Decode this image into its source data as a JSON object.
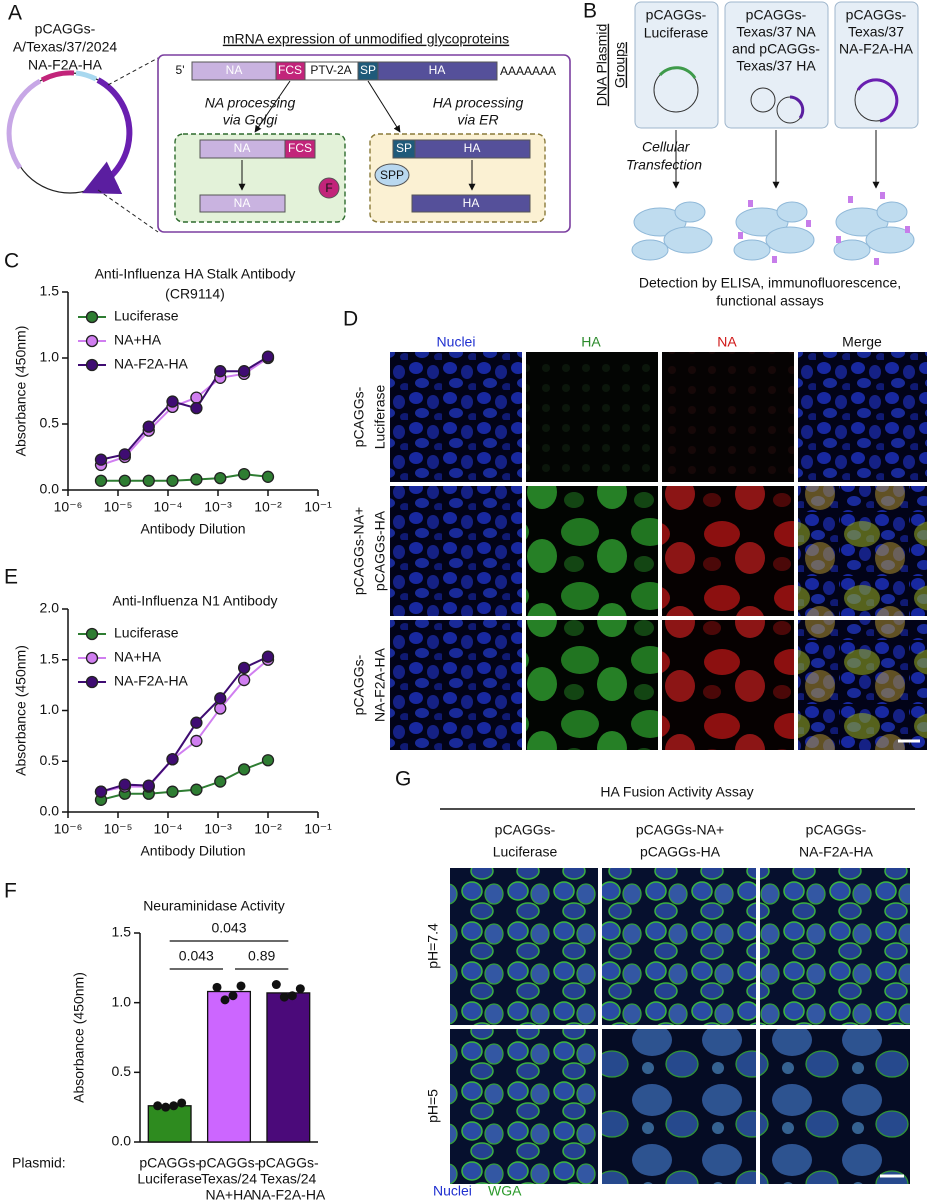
{
  "panel_labels": [
    "A",
    "B",
    "C",
    "D",
    "E",
    "F",
    "G"
  ],
  "panel_a": {
    "plasmid_label": [
      "pCAGGs-",
      "A/Texas/37/2024",
      "NA-F2A-HA"
    ],
    "title": "mRNA expression of unmodified glycoproteins",
    "five_prime": "5'",
    "segments": [
      "NA",
      "FCS",
      "PTV-2A",
      "SP",
      "HA"
    ],
    "poly_a": "AAAAAAA",
    "na_processing": [
      "NA processing",
      "via Golgi"
    ],
    "ha_processing": [
      "HA processing",
      "via ER"
    ],
    "golgi_box": {
      "top": [
        "NA",
        "FCS"
      ],
      "furin": "F",
      "bottom": "NA"
    },
    "er_box": {
      "sp": "SP",
      "ha_top": "HA",
      "spp": "SPP",
      "bottom": "HA"
    }
  },
  "panel_b": {
    "groups_label": [
      "DNA Plasmid",
      "Groups"
    ],
    "groups": [
      [
        "pCAGGs-",
        "Luciferase"
      ],
      [
        "pCAGGs-",
        "Texas/37 NA",
        "and pCAGGs-",
        "Texas/37 HA"
      ],
      [
        "pCAGGs-",
        "Texas/37",
        "NA-F2A-HA"
      ]
    ],
    "transfection": [
      "Cellular",
      "Transfection"
    ],
    "detection": [
      "Detection by ELISA, immunofluorescence,",
      "functional assays"
    ]
  },
  "panel_d": {
    "columns": [
      "Nuclei",
      "HA",
      "NA",
      "Merge"
    ],
    "rows": [
      [
        "pCAGGs-",
        "Luciferase"
      ],
      [
        "pCAGGs-NA+",
        "pCAGGs-HA"
      ],
      [
        "pCAGGs-",
        "NA-F2A-HA"
      ]
    ]
  },
  "panel_g": {
    "title": "HA Fusion Activity Assay",
    "columns": [
      [
        "pCAGGs-",
        "Luciferase"
      ],
      [
        "pCAGGs-NA+",
        "pCAGGs-HA"
      ],
      [
        "pCAGGs-",
        "NA-F2A-HA"
      ]
    ],
    "rows": [
      "pH=7.4",
      "pH=5"
    ],
    "legend": [
      "Nuclei",
      "WGA"
    ]
  },
  "chart_data": [
    {
      "type": "line",
      "title": "Anti-Influenza HA Stalk Antibody",
      "subtitle": "(CR9114)",
      "x_label": "Antibody Dilution",
      "y_label": "Absorbance (450nm)",
      "log_x": true,
      "legend": "upper left",
      "x": [
        4.57e-06,
        1.37e-05,
        4.12e-05,
        0.000123,
        0.00037,
        0.00111,
        0.00333,
        0.01
      ],
      "xlim": [
        1e-06,
        0.1
      ],
      "xticks": [
        {
          "value": 1e-06,
          "label": "10⁻⁶"
        },
        {
          "value": 1e-05,
          "label": "10⁻⁵"
        },
        {
          "value": 0.0001,
          "label": "10⁻⁴"
        },
        {
          "value": 0.001,
          "label": "10⁻³"
        },
        {
          "value": 0.01,
          "label": "10⁻²"
        },
        {
          "value": 0.1,
          "label": "10⁻¹"
        }
      ],
      "ylim": [
        0,
        1.5
      ],
      "yticks": [
        {
          "value": 0,
          "label": "0.0"
        },
        0.5,
        {
          "value": 1,
          "label": "1.0"
        },
        1.5
      ],
      "series": [
        {
          "name": "Luciferase",
          "color": "#2e7d32",
          "values": [
            0.07,
            0.07,
            0.07,
            0.07,
            0.08,
            0.09,
            0.12,
            0.1
          ]
        },
        {
          "name": "NA+HA",
          "color": "#d07ef0",
          "values": [
            0.19,
            0.25,
            0.45,
            0.63,
            0.7,
            0.85,
            0.88,
            1.0
          ]
        },
        {
          "name": "NA-F2A-HA",
          "color": "#3f0c72",
          "values": [
            0.23,
            0.27,
            0.48,
            0.67,
            0.62,
            0.9,
            0.9,
            1.01
          ]
        }
      ]
    },
    {
      "type": "line",
      "title": "Anti-Influenza N1 Antibody",
      "x_label": "Antibody Dilution",
      "y_label": "Absorbance (450nm)",
      "log_x": true,
      "legend": "upper left",
      "x": [
        4.57e-06,
        1.37e-05,
        4.12e-05,
        0.000123,
        0.00037,
        0.00111,
        0.00333,
        0.01
      ],
      "xlim": [
        1e-06,
        0.1
      ],
      "xticks": [
        {
          "value": 1e-06,
          "label": "10⁻⁶"
        },
        {
          "value": 1e-05,
          "label": "10⁻⁵"
        },
        {
          "value": 0.0001,
          "label": "10⁻⁴"
        },
        {
          "value": 0.001,
          "label": "10⁻³"
        },
        {
          "value": 0.01,
          "label": "10⁻²"
        },
        {
          "value": 0.1,
          "label": "10⁻¹"
        }
      ],
      "ylim": [
        0,
        2
      ],
      "yticks": [
        {
          "value": 0,
          "label": "0.0"
        },
        0.5,
        {
          "value": 1,
          "label": "1.0"
        },
        1.5,
        {
          "value": 2,
          "label": "2.0"
        }
      ],
      "series": [
        {
          "name": "Luciferase",
          "color": "#2e7d32",
          "values": [
            0.12,
            0.18,
            0.18,
            0.2,
            0.22,
            0.3,
            0.42,
            0.51
          ]
        },
        {
          "name": "NA+HA",
          "color": "#d07ef0",
          "values": [
            0.2,
            0.25,
            0.25,
            0.52,
            0.7,
            1.02,
            1.3,
            1.5
          ]
        },
        {
          "name": "NA-F2A-HA",
          "color": "#3f0c72",
          "values": [
            0.2,
            0.27,
            0.26,
            0.52,
            0.88,
            1.12,
            1.42,
            1.53
          ]
        }
      ]
    },
    {
      "type": "bar",
      "title": "Neuraminidase Activity",
      "y_label": "Absorbance (450nm)",
      "x_label": "Plasmid:",
      "categories": [
        [
          "pCAGGs-",
          "Luciferase"
        ],
        [
          "pCAGGs-",
          "Texas/24",
          "NA+HA"
        ],
        [
          "pCAGGs-",
          "Texas/24",
          "NA-F2A-HA"
        ]
      ],
      "values": [
        0.26,
        1.08,
        1.07
      ],
      "colors": [
        "#2e8b1f",
        "#cc66ff",
        "#4b0a7a"
      ],
      "points": [
        [
          0.26,
          0.25,
          0.26,
          0.28
        ],
        [
          1.11,
          1.02,
          1.05,
          1.12
        ],
        [
          1.13,
          1.04,
          1.05,
          1.1
        ]
      ],
      "ylim": [
        0,
        1.5
      ],
      "yticks": [
        {
          "value": 0,
          "label": "0.0"
        },
        0.5,
        {
          "value": 1,
          "label": "1.0"
        },
        1.5
      ],
      "annotations": [
        "0.043",
        "0.043",
        "0.89"
      ]
    }
  ]
}
